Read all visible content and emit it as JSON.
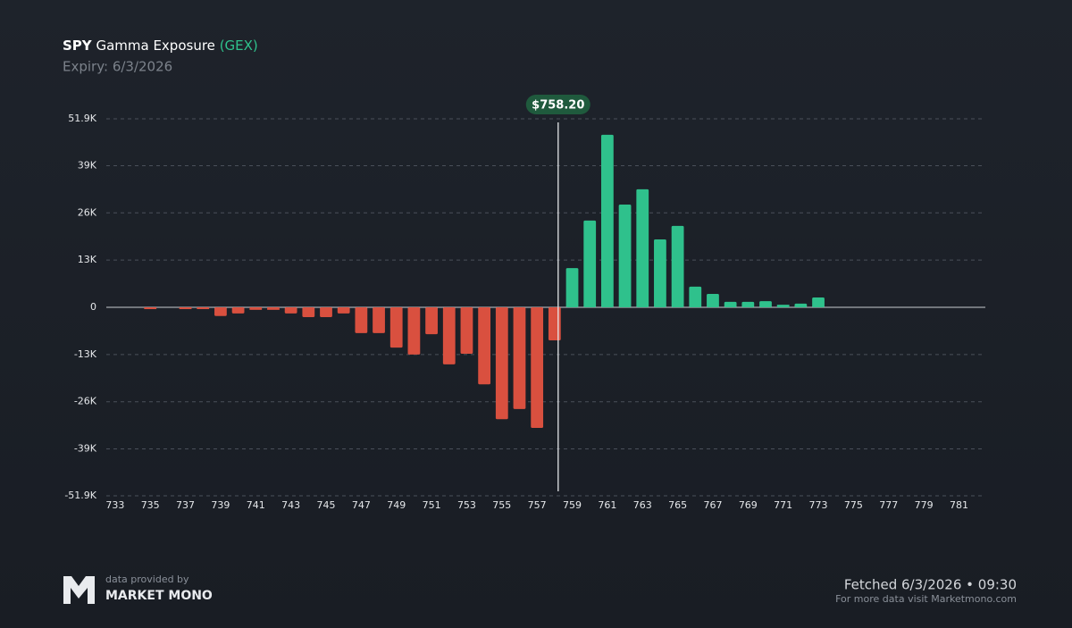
{
  "chart_data": {
    "type": "bar",
    "title": {
      "ticker": "SPY",
      "name": "Gamma Exposure",
      "tag": "(GEX)"
    },
    "subtitle": "Expiry: 6/3/2026",
    "x": [
      733,
      734,
      735,
      736,
      737,
      738,
      739,
      740,
      741,
      742,
      743,
      744,
      745,
      746,
      747,
      748,
      749,
      750,
      751,
      752,
      753,
      754,
      755,
      756,
      757,
      758,
      759,
      760,
      761,
      762,
      763,
      764,
      765,
      766,
      767,
      768,
      769,
      770,
      771,
      772,
      773,
      774,
      775,
      776,
      777,
      778,
      779,
      780,
      781,
      782
    ],
    "values": [
      0,
      0,
      -500,
      0,
      -500,
      -500,
      -2400,
      -1700,
      -700,
      -700,
      -1700,
      -2700,
      -2700,
      -1700,
      -7100,
      -7100,
      -11100,
      -13000,
      -7400,
      -15700,
      -12800,
      -21200,
      -30800,
      -28000,
      -33200,
      -9100,
      10800,
      23900,
      47500,
      28300,
      32500,
      18700,
      22400,
      5700,
      3700,
      1500,
      1500,
      1700,
      700,
      1000,
      2700,
      0,
      0,
      0,
      0,
      0,
      0,
      0,
      0,
      0
    ],
    "negative_color": "#d9503f",
    "positive_color": "#2fc18c",
    "xlim": [
      732.5,
      782.5
    ],
    "xticks": [
      733,
      735,
      737,
      739,
      741,
      743,
      745,
      747,
      749,
      751,
      753,
      755,
      757,
      759,
      761,
      763,
      765,
      767,
      769,
      771,
      773,
      775,
      777,
      779,
      781
    ],
    "ylim": [
      -51900,
      51900
    ],
    "yticks": [
      {
        "value": 51900,
        "label": "51.9K"
      },
      {
        "value": 39000,
        "label": "39K"
      },
      {
        "value": 26000,
        "label": "26K"
      },
      {
        "value": 13000,
        "label": "13K"
      },
      0,
      {
        "value": -13000,
        "label": "-13K"
      },
      {
        "value": -26000,
        "label": "-26K"
      },
      {
        "value": -39000,
        "label": "-39K"
      },
      {
        "value": -51900,
        "label": "-51.9K"
      }
    ],
    "grid": true,
    "price": {
      "value": 758.2,
      "label": "$758.20"
    }
  },
  "footer": {
    "provider_caption": "data provided by",
    "provider": "MARKET MONO",
    "fetched": "Fetched 6/3/2026 • 09:30",
    "note": "For more data visit Marketmono.com"
  }
}
